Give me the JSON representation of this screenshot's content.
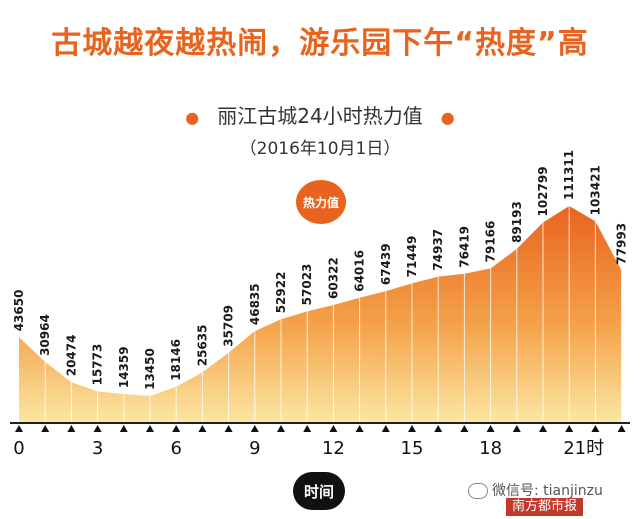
{
  "header": {
    "headline": "古城越夜越热闹，游乐园下午“热度”高",
    "subtitle": "丽江古城24小时热力值",
    "date": "（2016年10月1日）",
    "badge": "热力值",
    "xlabel": "时间"
  },
  "watermark": {
    "wechat": "微信号: tianjinzu",
    "logo": "南方都市报"
  },
  "colors": {
    "accent": "#e8641e",
    "fill_top": "#e8641e",
    "fill_bottom": "#fbe6a2"
  },
  "chart_data": {
    "type": "area",
    "title": "丽江古城24小时热力值",
    "subtitle": "（2016年10月1日）",
    "xlabel": "时间",
    "ylabel": "热力值",
    "x": [
      0,
      1,
      2,
      3,
      4,
      5,
      6,
      7,
      8,
      9,
      10,
      11,
      12,
      13,
      14,
      15,
      16,
      17,
      18,
      19,
      20,
      21,
      22,
      23
    ],
    "values": [
      43650,
      30964,
      20474,
      15773,
      14359,
      13450,
      18146,
      25635,
      35709,
      46835,
      52922,
      57023,
      60322,
      64016,
      67439,
      71449,
      74937,
      76419,
      79166,
      89193,
      102799,
      111311,
      103421,
      77993
    ],
    "value_labels": [
      "43650",
      "30964",
      "20474",
      "15773",
      "14359",
      "13450",
      "18146",
      "25635",
      "35709",
      "46835",
      "52922",
      "57023",
      "60322",
      "64016",
      "67439",
      "71449",
      "74937",
      "76419",
      "79166",
      "89193",
      "102799",
      "111311",
      "103421",
      "77993"
    ],
    "xticks": [
      0,
      3,
      6,
      9,
      12,
      15,
      18,
      21
    ],
    "xtick_labels": [
      "0",
      "3",
      "6",
      "9",
      "12",
      "15",
      "18",
      "21时"
    ],
    "grid": false,
    "legend": "none"
  }
}
